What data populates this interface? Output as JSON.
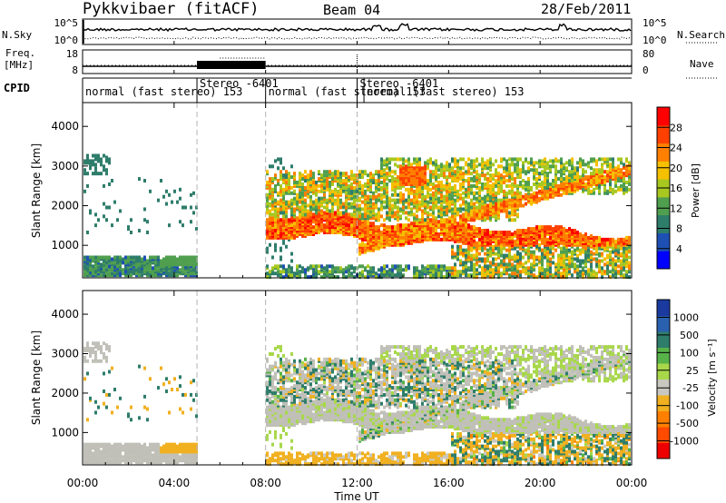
{
  "header": {
    "radar_title": "Pykkvibaer (fitACF)",
    "beam_label": "Beam 04",
    "date_label": "28/Feb/2011"
  },
  "status_panels": {
    "nsky": {
      "left_label": "N.Sky",
      "left_ticks": [
        "10^5",
        "10^0"
      ],
      "right_label": "N.Search",
      "right_ticks": [
        "10^5",
        "10^0"
      ]
    },
    "freq": {
      "left_label_line1": "Freq.",
      "left_label_line2": "[MHz]",
      "left_ticks": [
        "18",
        "8"
      ],
      "right_label": "Nave",
      "right_ticks": [
        "80",
        "0"
      ]
    },
    "cpid": {
      "label": "CPID",
      "segments": [
        {
          "text": "normal (fast stereo) 153",
          "start_hour": 0.0
        },
        {
          "text": "Stereo -6401",
          "start_hour": 5.0
        },
        {
          "text": "normal (fast stereo) 153",
          "start_hour": 8.0
        },
        {
          "text": "Stereo -6401",
          "start_hour": 12.0
        },
        {
          "text": "normal (fast stereo) 153",
          "start_hour": 12.3
        }
      ]
    }
  },
  "colors": {
    "power_scale": [
      "#0000ff",
      "#1e50b4",
      "#2e7d6b",
      "#4f9f4f",
      "#a8c820",
      "#f5c000",
      "#ff8000",
      "#ff4000",
      "#ff0000"
    ],
    "velocity_scale": [
      "#1a3aa0",
      "#2a60b0",
      "#2e7d6b",
      "#57b24a",
      "#a8d84a",
      "#c8c8c0",
      "#f0b020",
      "#ff8000",
      "#ff4a00",
      "#ee0000"
    ],
    "ground_scatter": "#c0c0b8",
    "dashed_marker": "#b4b4b4"
  },
  "chart_data": [
    {
      "type": "heatmap",
      "name": "power",
      "ylabel": "Slant Range [km]",
      "y_ticks": [
        1000,
        2000,
        3000,
        4000
      ],
      "ylim": [
        180,
        4600
      ],
      "colorbar_label": "Power [dB]",
      "colorbar_ticks": [
        "4",
        "8",
        "12",
        "16",
        "20",
        "24",
        "28"
      ],
      "colorbar_range": [
        0,
        32
      ],
      "gap_hours": [
        [
          5.0,
          7.95
        ]
      ],
      "dashed_markers_hours": [
        5.0,
        8.0,
        12.0
      ]
    },
    {
      "type": "heatmap",
      "name": "velocity",
      "ylabel": "Slant Range [km]",
      "y_ticks": [
        1000,
        2000,
        3000,
        4000
      ],
      "ylim": [
        180,
        4600
      ],
      "colorbar_label": "Velocity [m s⁻¹]",
      "colorbar_ticks": [
        "1000",
        "500",
        "100",
        "25",
        "-25",
        "-100",
        "-500",
        "-1000"
      ],
      "gap_hours": [
        [
          5.0,
          7.95
        ]
      ],
      "dashed_markers_hours": [
        5.0,
        8.0,
        12.0
      ]
    }
  ],
  "x_axis": {
    "xlabel": "Time UT",
    "xlim": [
      0,
      24
    ],
    "tick_hours": [
      0,
      4,
      8,
      12,
      16,
      20,
      24
    ],
    "tick_labels": [
      "00:00",
      "04:00",
      "08:00",
      "12:00",
      "16:00",
      "20:00",
      "00:00"
    ]
  }
}
